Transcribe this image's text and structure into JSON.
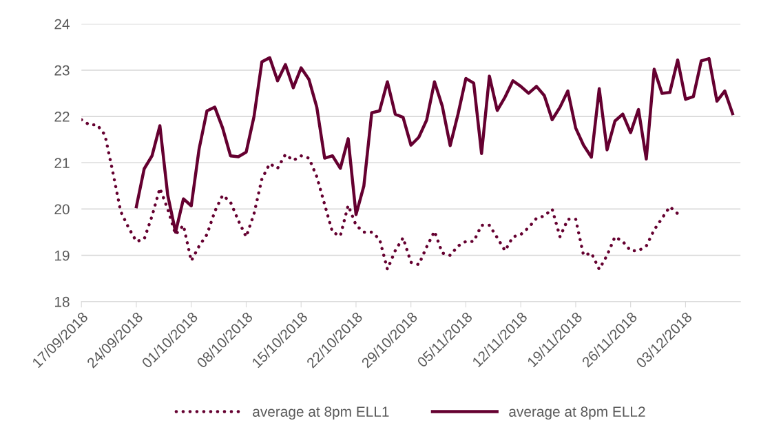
{
  "chart_data": {
    "type": "line",
    "series": [
      {
        "name": "average at 8pm ELL1",
        "color": "#650030",
        "line_style": "dotted",
        "x": [
          "2018-09-17",
          "2018-09-18",
          "2018-09-19",
          "2018-09-20",
          "2018-09-21",
          "2018-09-22",
          "2018-09-23",
          "2018-09-24",
          "2018-09-25",
          "2018-09-26",
          "2018-09-27",
          "2018-09-28",
          "2018-09-29",
          "2018-09-30",
          "2018-10-01",
          "2018-10-02",
          "2018-10-03",
          "2018-10-04",
          "2018-10-05",
          "2018-10-06",
          "2018-10-07",
          "2018-10-08",
          "2018-10-09",
          "2018-10-10",
          "2018-10-11",
          "2018-10-12",
          "2018-10-13",
          "2018-10-14",
          "2018-10-15",
          "2018-10-16",
          "2018-10-17",
          "2018-10-18",
          "2018-10-19",
          "2018-10-20",
          "2018-10-21",
          "2018-10-22",
          "2018-10-23",
          "2018-10-24",
          "2018-10-25",
          "2018-10-26",
          "2018-10-27",
          "2018-10-28",
          "2018-10-29",
          "2018-10-30",
          "2018-10-31",
          "2018-11-01",
          "2018-11-02",
          "2018-11-03",
          "2018-11-04",
          "2018-11-05",
          "2018-11-06",
          "2018-11-07",
          "2018-11-08",
          "2018-11-09",
          "2018-11-10",
          "2018-11-11",
          "2018-11-12",
          "2018-11-13",
          "2018-11-14",
          "2018-11-15",
          "2018-11-16",
          "2018-11-17",
          "2018-11-18",
          "2018-11-19",
          "2018-11-20",
          "2018-11-21",
          "2018-11-22",
          "2018-11-23",
          "2018-11-24",
          "2018-11-25",
          "2018-11-26",
          "2018-11-27",
          "2018-11-28",
          "2018-11-29",
          "2018-11-30",
          "2018-12-01",
          "2018-12-02"
        ],
        "values": [
          21.93,
          21.82,
          21.82,
          21.6,
          20.8,
          19.95,
          19.6,
          19.3,
          19.35,
          19.85,
          20.45,
          20.0,
          19.45,
          19.65,
          18.88,
          19.2,
          19.45,
          19.95,
          20.3,
          20.15,
          19.75,
          19.4,
          19.9,
          20.65,
          20.98,
          20.88,
          21.18,
          21.05,
          21.15,
          21.1,
          20.7,
          20.1,
          19.5,
          19.42,
          20.08,
          19.65,
          19.5,
          19.5,
          19.35,
          18.7,
          19.1,
          19.38,
          18.85,
          18.8,
          19.18,
          19.52,
          19.05,
          19.0,
          19.2,
          19.3,
          19.3,
          19.65,
          19.65,
          19.38,
          19.1,
          19.4,
          19.45,
          19.6,
          19.8,
          19.85,
          20.0,
          19.4,
          19.78,
          19.78,
          19.0,
          19.05,
          18.7,
          19.0,
          19.4,
          19.3,
          19.1,
          19.1,
          19.2,
          19.55,
          19.8,
          20.05,
          19.9
        ]
      },
      {
        "name": "average at 8pm ELL2",
        "color": "#650030",
        "line_style": "solid",
        "x": [
          "2018-09-24",
          "2018-09-25",
          "2018-09-26",
          "2018-09-27",
          "2018-09-28",
          "2018-09-29",
          "2018-09-30",
          "2018-10-01",
          "2018-10-02",
          "2018-10-03",
          "2018-10-04",
          "2018-10-05",
          "2018-10-06",
          "2018-10-07",
          "2018-10-08",
          "2018-10-09",
          "2018-10-10",
          "2018-10-11",
          "2018-10-12",
          "2018-10-13",
          "2018-10-14",
          "2018-10-15",
          "2018-10-16",
          "2018-10-17",
          "2018-10-18",
          "2018-10-19",
          "2018-10-20",
          "2018-10-21",
          "2018-10-22",
          "2018-10-23",
          "2018-10-24",
          "2018-10-25",
          "2018-10-26",
          "2018-10-27",
          "2018-10-28",
          "2018-10-29",
          "2018-10-30",
          "2018-10-31",
          "2018-11-01",
          "2018-11-02",
          "2018-11-03",
          "2018-11-04",
          "2018-11-05",
          "2018-11-06",
          "2018-11-07",
          "2018-11-08",
          "2018-11-09",
          "2018-11-10",
          "2018-11-11",
          "2018-11-12",
          "2018-11-13",
          "2018-11-14",
          "2018-11-15",
          "2018-11-16",
          "2018-11-17",
          "2018-11-18",
          "2018-11-19",
          "2018-11-20",
          "2018-11-21",
          "2018-11-22",
          "2018-11-23",
          "2018-11-24",
          "2018-11-25",
          "2018-11-26",
          "2018-11-27",
          "2018-11-28",
          "2018-11-29",
          "2018-11-30",
          "2018-12-01",
          "2018-12-02",
          "2018-12-03",
          "2018-12-04",
          "2018-12-05",
          "2018-12-06",
          "2018-12-07",
          "2018-12-08",
          "2018-12-09"
        ],
        "values": [
          20.05,
          20.87,
          21.15,
          21.8,
          20.3,
          19.5,
          20.22,
          20.07,
          21.3,
          22.12,
          22.2,
          21.75,
          21.15,
          21.13,
          21.23,
          22.0,
          23.18,
          23.27,
          22.77,
          23.12,
          22.62,
          23.05,
          22.8,
          22.2,
          21.1,
          21.15,
          20.88,
          21.52,
          19.88,
          20.5,
          22.08,
          22.12,
          22.75,
          22.05,
          21.98,
          21.38,
          21.55,
          21.92,
          22.75,
          22.22,
          21.37,
          22.05,
          22.82,
          22.72,
          21.2,
          22.87,
          22.13,
          22.42,
          22.77,
          22.65,
          22.5,
          22.65,
          22.45,
          21.93,
          22.2,
          22.55,
          21.75,
          21.38,
          21.12,
          22.6,
          21.28,
          21.9,
          22.05,
          21.65,
          22.15,
          21.08,
          23.02,
          22.5,
          22.52,
          23.22,
          22.37,
          22.43,
          23.2,
          23.25,
          22.33,
          22.55,
          22.06
        ]
      }
    ],
    "xlim": [
      "2018-09-17",
      "2018-12-10"
    ],
    "xticks": [
      {
        "value": "2018-09-17",
        "label": "17/09/2018"
      },
      {
        "value": "2018-09-24",
        "label": "24/09/2018"
      },
      {
        "value": "2018-10-01",
        "label": "01/10/2018"
      },
      {
        "value": "2018-10-08",
        "label": "08/10/2018"
      },
      {
        "value": "2018-10-15",
        "label": "15/10/2018"
      },
      {
        "value": "2018-10-22",
        "label": "22/10/2018"
      },
      {
        "value": "2018-10-29",
        "label": "29/10/2018"
      },
      {
        "value": "2018-11-05",
        "label": "05/11/2018"
      },
      {
        "value": "2018-11-12",
        "label": "12/11/2018"
      },
      {
        "value": "2018-11-19",
        "label": "19/11/2018"
      },
      {
        "value": "2018-11-26",
        "label": "26/11/2018"
      },
      {
        "value": "2018-12-03",
        "label": "03/12/2018"
      }
    ],
    "ylim": [
      18,
      24
    ],
    "yticks": [
      18,
      19,
      20,
      21,
      22,
      23,
      24
    ],
    "grid": "y",
    "legend": "bottom",
    "marker": "none"
  }
}
